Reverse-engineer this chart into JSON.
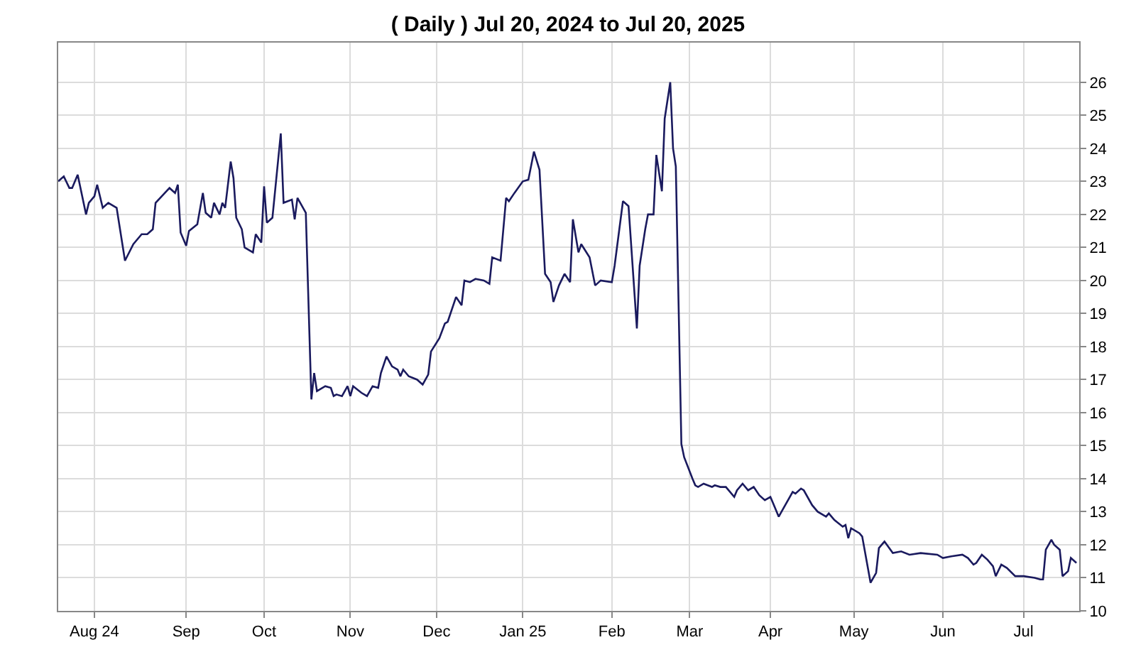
{
  "chart_data": {
    "type": "line",
    "title": "( Daily ) Jul 20, 2024 to Jul 20, 2025",
    "x": [
      "2024-07-19",
      "2024-07-21",
      "2024-07-23",
      "2024-07-24",
      "2024-07-26",
      "2024-07-29",
      "2024-07-30",
      "2024-08-01",
      "2024-08-02",
      "2024-08-04",
      "2024-08-06",
      "2024-08-09",
      "2024-08-12",
      "2024-08-15",
      "2024-08-18",
      "2024-08-20",
      "2024-08-22",
      "2024-08-23",
      "2024-08-28",
      "2024-08-30",
      "2024-08-31",
      "2024-09-01",
      "2024-09-03",
      "2024-09-04",
      "2024-09-07",
      "2024-09-09",
      "2024-09-10",
      "2024-09-12",
      "2024-09-13",
      "2024-09-15",
      "2024-09-16",
      "2024-09-17",
      "2024-09-19",
      "2024-09-20",
      "2024-09-21",
      "2024-09-23",
      "2024-09-24",
      "2024-09-27",
      "2024-09-28",
      "2024-09-30",
      "2024-10-01",
      "2024-10-02",
      "2024-10-04",
      "2024-10-07",
      "2024-10-08",
      "2024-10-11",
      "2024-10-12",
      "2024-10-13",
      "2024-10-16",
      "2024-10-18",
      "2024-10-19",
      "2024-10-20",
      "2024-10-23",
      "2024-10-25",
      "2024-10-26",
      "2024-10-27",
      "2024-10-29",
      "2024-10-31",
      "2024-11-01",
      "2024-11-02",
      "2024-11-05",
      "2024-11-07",
      "2024-11-09",
      "2024-11-11",
      "2024-11-12",
      "2024-11-13",
      "2024-11-14",
      "2024-11-16",
      "2024-11-18",
      "2024-11-19",
      "2024-11-20",
      "2024-11-22",
      "2024-11-25",
      "2024-11-27",
      "2024-11-29",
      "2024-11-30",
      "2024-12-03",
      "2024-12-05",
      "2024-12-06",
      "2024-12-09",
      "2024-12-11",
      "2024-12-12",
      "2024-12-14",
      "2024-12-16",
      "2024-12-19",
      "2024-12-21",
      "2024-12-22",
      "2024-12-25",
      "2024-12-27",
      "2024-12-28",
      "2024-12-30",
      "2025-01-02",
      "2025-01-04",
      "2025-01-06",
      "2025-01-08",
      "2025-01-10",
      "2025-01-12",
      "2025-01-13",
      "2025-01-15",
      "2025-01-17",
      "2025-01-19",
      "2025-01-20",
      "2025-01-22",
      "2025-01-23",
      "2025-01-26",
      "2025-01-28",
      "2025-01-30",
      "2025-02-03",
      "2025-02-04",
      "2025-02-07",
      "2025-02-09",
      "2025-02-12",
      "2025-02-13",
      "2025-02-15",
      "2025-02-16",
      "2025-02-18",
      "2025-02-19",
      "2025-02-21",
      "2025-02-22",
      "2025-02-24",
      "2025-02-25",
      "2025-02-26",
      "2025-02-28",
      "2025-03-01",
      "2025-03-04",
      "2025-03-05",
      "2025-03-06",
      "2025-03-08",
      "2025-03-11",
      "2025-03-12",
      "2025-03-14",
      "2025-03-16",
      "2025-03-19",
      "2025-03-20",
      "2025-03-22",
      "2025-03-24",
      "2025-03-26",
      "2025-03-28",
      "2025-03-30",
      "2025-04-01",
      "2025-04-02",
      "2025-04-04",
      "2025-04-05",
      "2025-04-09",
      "2025-04-10",
      "2025-04-12",
      "2025-04-13",
      "2025-04-16",
      "2025-04-18",
      "2025-04-21",
      "2025-04-22",
      "2025-04-24",
      "2025-04-27",
      "2025-04-28",
      "2025-04-29",
      "2025-04-30",
      "2025-05-03",
      "2025-05-04",
      "2025-05-07",
      "2025-05-09",
      "2025-05-10",
      "2025-05-12",
      "2025-05-15",
      "2025-05-18",
      "2025-05-21",
      "2025-05-25",
      "2025-05-31",
      "2025-06-02",
      "2025-06-05",
      "2025-06-09",
      "2025-06-11",
      "2025-06-13",
      "2025-06-14",
      "2025-06-16",
      "2025-06-18",
      "2025-06-20",
      "2025-06-21",
      "2025-06-23",
      "2025-06-25",
      "2025-06-28",
      "2025-07-01",
      "2025-07-05",
      "2025-07-07",
      "2025-07-08",
      "2025-07-09",
      "2025-07-11",
      "2025-07-12",
      "2025-07-14",
      "2025-07-15",
      "2025-07-17",
      "2025-07-18",
      "2025-07-20"
    ],
    "series": [
      {
        "color": "#1a1a5e",
        "values": [
          23.0,
          23.15,
          22.8,
          22.8,
          23.2,
          22.0,
          22.35,
          22.55,
          22.9,
          22.2,
          22.35,
          22.2,
          20.6,
          21.1,
          21.4,
          21.4,
          21.55,
          22.35,
          22.8,
          22.65,
          22.9,
          21.45,
          21.05,
          21.5,
          21.7,
          22.65,
          22.05,
          21.9,
          22.35,
          22.0,
          22.35,
          22.2,
          23.6,
          23.1,
          21.9,
          21.55,
          21.0,
          20.85,
          21.4,
          21.15,
          22.85,
          21.75,
          21.9,
          24.45,
          22.35,
          22.45,
          21.85,
          22.5,
          22.05,
          16.4,
          17.2,
          16.65,
          16.8,
          16.75,
          16.5,
          16.55,
          16.5,
          16.8,
          16.5,
          16.8,
          16.6,
          16.5,
          16.8,
          16.75,
          17.2,
          17.45,
          17.7,
          17.4,
          17.3,
          17.1,
          17.3,
          17.1,
          17.0,
          16.85,
          17.15,
          17.85,
          18.25,
          18.7,
          18.75,
          19.5,
          19.25,
          20.0,
          19.95,
          20.05,
          20.0,
          19.9,
          20.7,
          20.6,
          22.5,
          22.4,
          22.65,
          23.0,
          23.05,
          23.9,
          23.35,
          20.2,
          19.95,
          19.35,
          19.85,
          20.2,
          19.95,
          21.85,
          20.85,
          21.1,
          20.7,
          19.85,
          20.0,
          19.95,
          20.45,
          22.4,
          22.25,
          18.55,
          20.45,
          21.55,
          22.0,
          22.0,
          23.8,
          22.7,
          24.9,
          26.0,
          24.0,
          23.45,
          15.05,
          14.65,
          14.0,
          13.8,
          13.75,
          13.85,
          13.75,
          13.8,
          13.75,
          13.75,
          13.45,
          13.65,
          13.85,
          13.65,
          13.75,
          13.5,
          13.35,
          13.45,
          13.25,
          12.85,
          13.0,
          13.6,
          13.55,
          13.7,
          13.65,
          13.2,
          13.0,
          12.85,
          12.95,
          12.75,
          12.55,
          12.6,
          12.2,
          12.5,
          12.35,
          12.25,
          10.85,
          11.15,
          11.9,
          12.1,
          11.75,
          11.8,
          11.7,
          11.75,
          11.7,
          11.6,
          11.65,
          11.7,
          11.6,
          11.4,
          11.45,
          11.7,
          11.55,
          11.35,
          11.05,
          11.4,
          11.3,
          11.05,
          11.05,
          11.0,
          10.95,
          10.95,
          11.85,
          12.15,
          12.0,
          11.85,
          11.05,
          11.2,
          11.6,
          11.45
        ]
      }
    ],
    "xlim": [
      "2024-07-19",
      "2025-07-21"
    ],
    "xticks": [
      {
        "value": "2024-08-01",
        "label": "Aug 24"
      },
      {
        "value": "2024-09-03",
        "label": "Sep"
      },
      {
        "value": "2024-10-01",
        "label": "Oct"
      },
      {
        "value": "2024-11-01",
        "label": "Nov"
      },
      {
        "value": "2024-12-02",
        "label": "Dec"
      },
      {
        "value": "2025-01-02",
        "label": "Jan 25"
      },
      {
        "value": "2025-02-03",
        "label": "Feb"
      },
      {
        "value": "2025-03-03",
        "label": "Mar"
      },
      {
        "value": "2025-04-01",
        "label": "Apr"
      },
      {
        "value": "2025-05-01",
        "label": "May"
      },
      {
        "value": "2025-06-02",
        "label": "Jun"
      },
      {
        "value": "2025-07-01",
        "label": "Jul"
      }
    ],
    "ylim": [
      10,
      27.2
    ],
    "yticks": [
      10,
      11,
      12,
      13,
      14,
      15,
      16,
      17,
      18,
      19,
      20,
      21,
      22,
      23,
      24,
      25,
      26
    ],
    "grid": true,
    "marker": "none",
    "line_style": "solid"
  }
}
